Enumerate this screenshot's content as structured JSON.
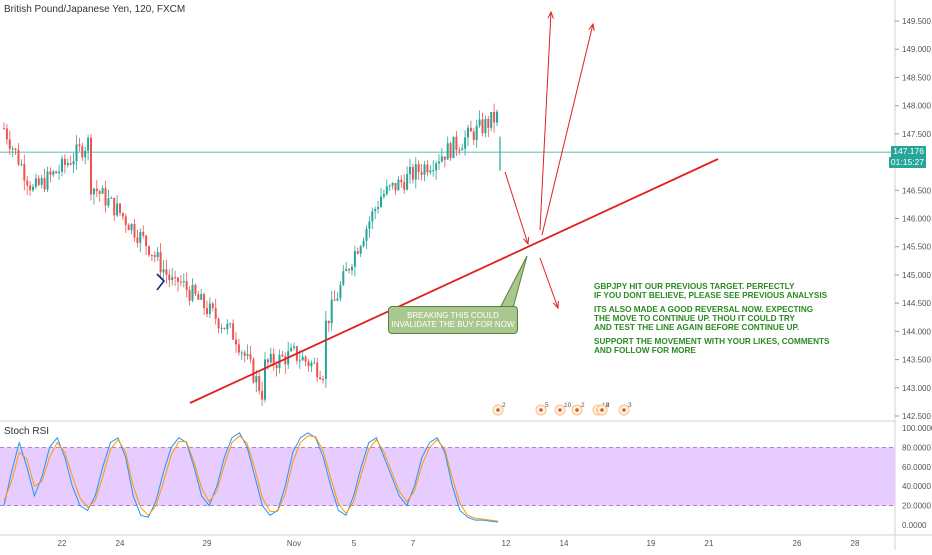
{
  "header": {
    "title": "British Pound/Japanese Yen, 120, FXCM"
  },
  "price_tags": {
    "last_price": "147.176",
    "countdown": "01:15:27"
  },
  "annotations": {
    "callout": [
      "BREAKING THIS COULD",
      "INVALIDATE THE BUY FOR NOW"
    ],
    "note_lines": [
      "GBPJPY HIT OUR PREVIOUS TARGET. PERFECTLY",
      "IF YOU DONT BELIEVE, PLEASE SEE PREVIOUS ANALYSIS",
      "",
      "ITS ALSO MADE A GOOD REVERSAL NOW. EXPECTING",
      "THE MOVE TO CONTINUE UP. THOU IT COULD TRY",
      "AND TEST THE LINE AGAIN BEFORE CONTINUE UP.",
      "",
      "SUPPORT THE MOVEMENT WITH YOUR LIKES, COMMENTS",
      "AND FOLLOW FOR MORE"
    ]
  },
  "event_markers": [
    {
      "date": "Nov 8",
      "label": "2"
    },
    {
      "date": "Nov 9",
      "label": "5"
    },
    {
      "date": "Nov 10",
      "label": "10"
    },
    {
      "date": "Nov 10",
      "label": "2"
    },
    {
      "date": "Nov 11",
      "label": "18"
    },
    {
      "date": "Nov 12",
      "label": "2"
    },
    {
      "date": "Nov 12",
      "label": "3"
    },
    {
      "date": "Nov 13",
      "label": ""
    }
  ],
  "colors": {
    "up": "#26a69a",
    "down": "#ef5350",
    "trendline": "#e02020",
    "arrows": "#e02020",
    "current_line": "#26a69a",
    "rsi_k": "#2196f3",
    "rsi_d": "#ff9800",
    "rsi_band": "#e6ccff",
    "note_text": "#2b8a22"
  },
  "chart_data": [
    {
      "type": "candlestick",
      "title": "British Pound/Japanese Yen, 120, FXCM",
      "x_ticks": [
        "22",
        "24",
        "29",
        "Nov",
        "5",
        "7",
        "12",
        "14",
        "19",
        "21",
        "26",
        "28"
      ],
      "y_ticks": [
        "149.500",
        "149.000",
        "148.500",
        "148.000",
        "147.500",
        "146.500",
        "146.000",
        "145.500",
        "145.000",
        "144.500",
        "144.000",
        "143.500",
        "143.000",
        "142.500"
      ],
      "ylim": [
        142.4,
        149.7
      ],
      "current_price": 147.176,
      "price_path": [
        [
          "Oct 20",
          147.6
        ],
        [
          "Oct 21",
          146.5
        ],
        [
          "Oct 22",
          146.9
        ],
        [
          "Oct 23",
          147.4
        ],
        [
          "Oct 23",
          146.6
        ],
        [
          "Oct 24",
          146.1
        ],
        [
          "Oct 25",
          145.5
        ],
        [
          "Oct 26",
          144.7
        ],
        [
          "Oct 26",
          144.9
        ],
        [
          "Oct 28",
          143.9
        ],
        [
          "Oct 29",
          142.8
        ],
        [
          "Oct 29",
          143.4
        ],
        [
          "Oct 30",
          143.6
        ],
        [
          "Oct 31",
          143.3
        ],
        [
          "Oct 31",
          144.0
        ],
        [
          "Nov 1",
          145.3
        ],
        [
          "Nov 2",
          146.4
        ],
        [
          "Nov 4",
          147.1
        ],
        [
          "Nov 6",
          147.8
        ],
        [
          "Nov 7",
          148.6
        ],
        [
          "Nov 8",
          149.3
        ],
        [
          "Nov 9",
          149.45
        ],
        [
          "Nov 10",
          148.9
        ],
        [
          "Nov 11",
          148.2
        ],
        [
          "Nov 12",
          147.7
        ],
        [
          "Nov 12",
          147.176
        ]
      ],
      "trendline": [
        [
          "Oct 29",
          142.7
        ],
        [
          "Nov 21",
          146.9
        ]
      ],
      "forecast_arrows": [
        {
          "from": [
            "Nov 12",
            146.7
          ],
          "to": [
            "Nov 13",
            145.6
          ]
        },
        {
          "from": [
            "Nov 13",
            145.5
          ],
          "to": [
            "Nov 15",
            149.6
          ]
        },
        {
          "from": [
            "Nov 13",
            145.5
          ],
          "to": [
            "Nov 17",
            149.5
          ]
        },
        {
          "from": [
            "Nov 13",
            145.2
          ],
          "to": [
            "Nov 14",
            144.3
          ]
        }
      ]
    },
    {
      "type": "line",
      "title": "Stoch RSI",
      "y_ticks": [
        "100.0000",
        "80.0000",
        "60.0000",
        "40.0000",
        "20.0000",
        "0.0000"
      ],
      "ylim": [
        0,
        100
      ],
      "band": [
        20,
        80
      ],
      "series": [
        {
          "values": [
            20,
            55,
            85,
            60,
            30,
            50,
            80,
            90,
            70,
            40,
            20,
            15,
            30,
            60,
            85,
            90,
            70,
            30,
            10,
            8,
            25,
            55,
            80,
            90,
            85,
            60,
            30,
            20,
            40,
            70,
            90,
            95,
            80,
            50,
            20,
            10,
            15,
            40,
            75,
            90,
            95,
            90,
            70,
            40,
            15,
            10,
            30,
            60,
            85,
            90,
            70,
            50,
            30,
            20,
            40,
            70,
            85,
            90,
            75,
            40,
            15,
            8,
            5,
            5,
            4,
            3
          ]
        },
        {
          "values": [
            25,
            45,
            75,
            68,
            40,
            45,
            70,
            85,
            75,
            50,
            28,
            18,
            25,
            50,
            78,
            88,
            75,
            40,
            18,
            10,
            20,
            45,
            72,
            86,
            86,
            65,
            38,
            24,
            35,
            62,
            85,
            92,
            84,
            58,
            28,
            14,
            14,
            32,
            65,
            85,
            92,
            91,
            76,
            48,
            22,
            12,
            24,
            52,
            78,
            88,
            75,
            55,
            35,
            24,
            35,
            62,
            80,
            88,
            78,
            48,
            22,
            10,
            7,
            6,
            5,
            4
          ]
        }
      ]
    }
  ]
}
